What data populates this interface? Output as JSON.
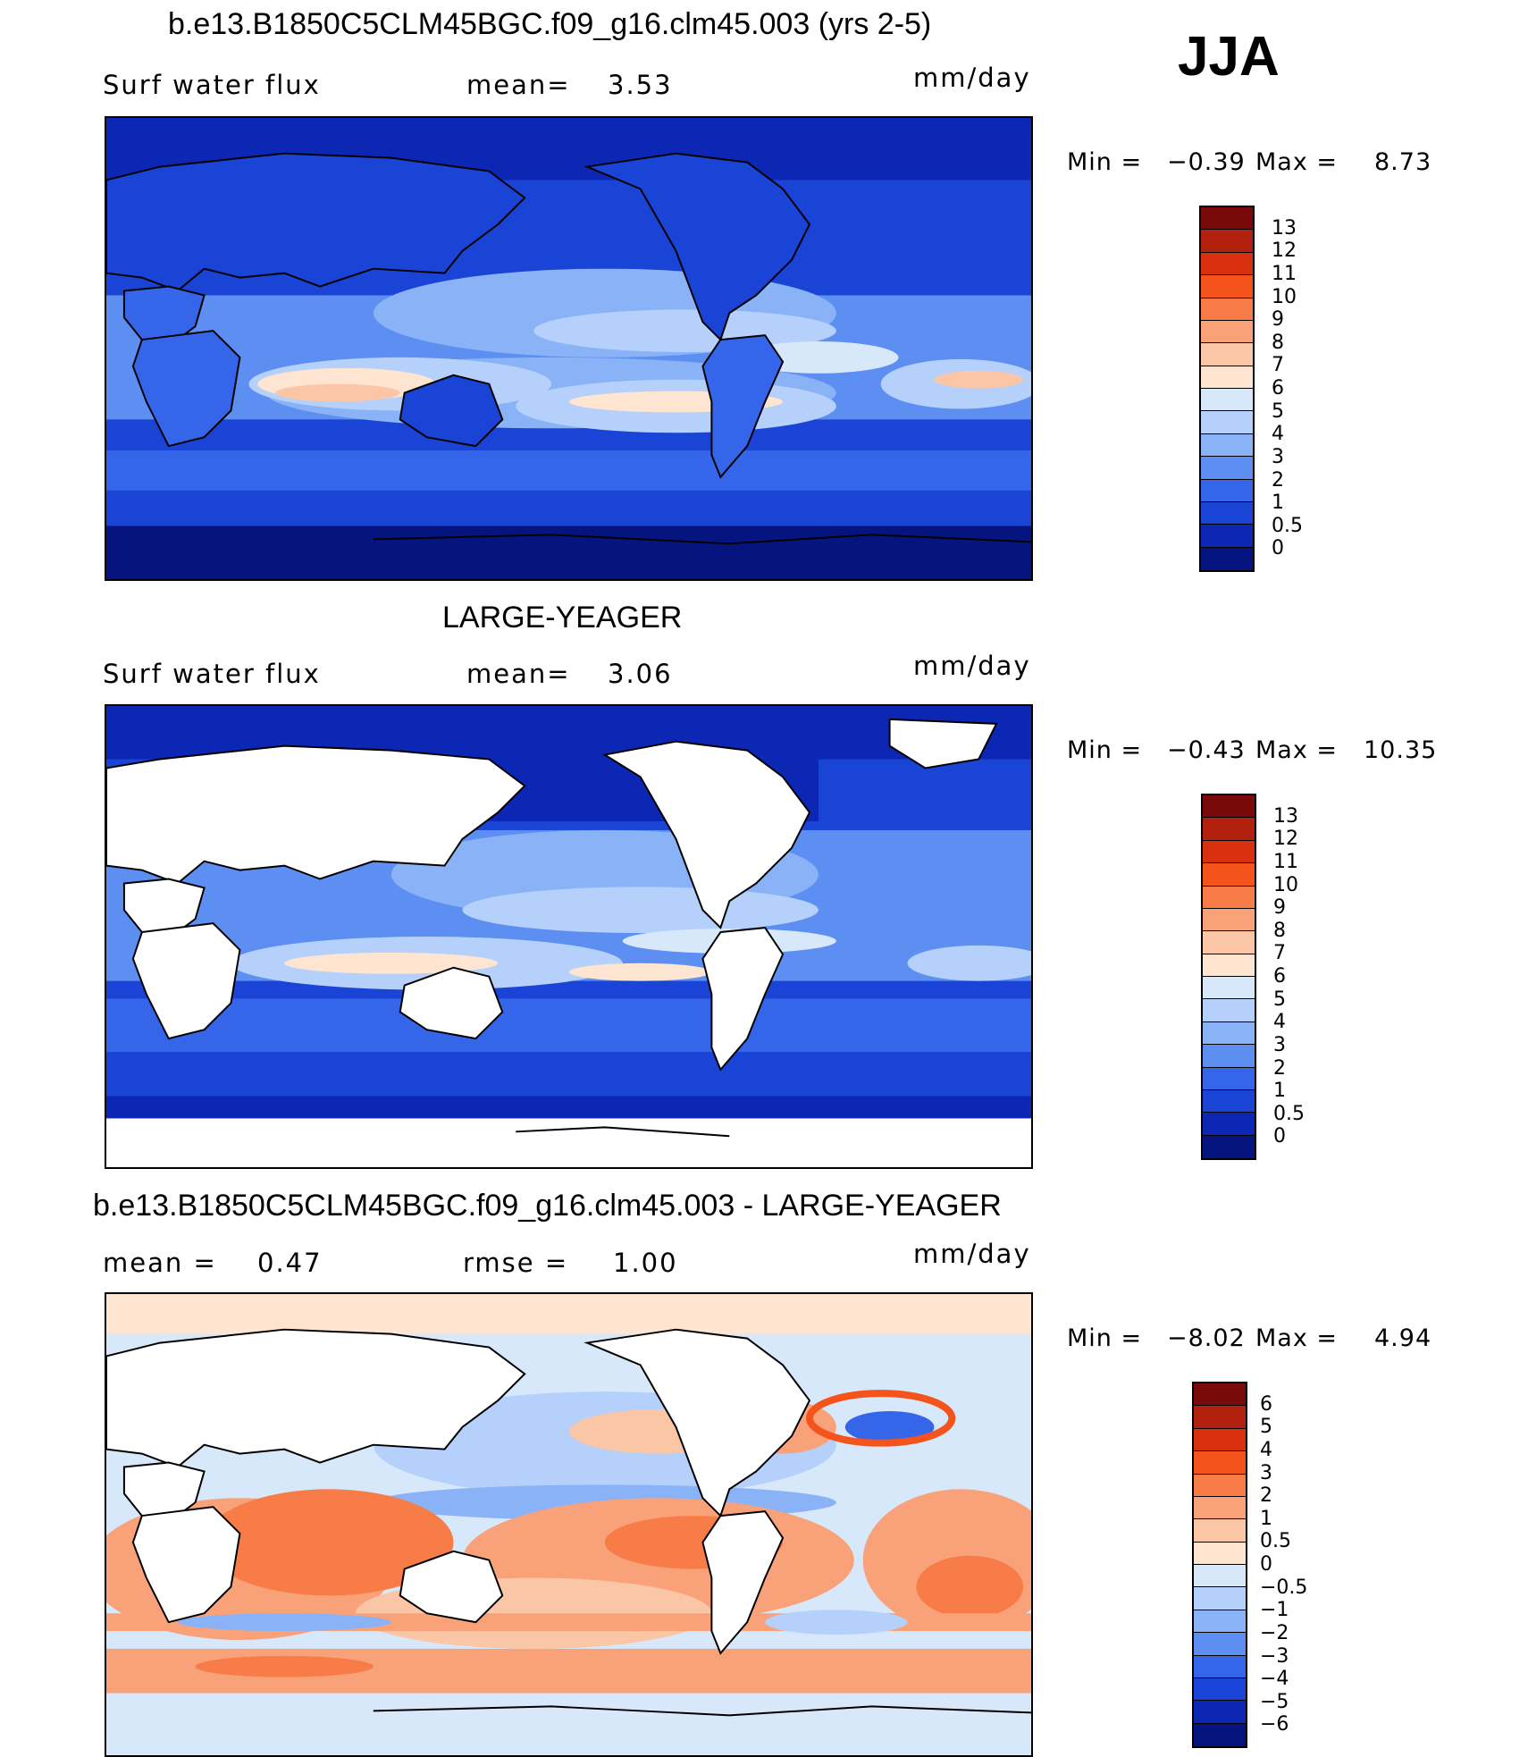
{
  "season": "JJA",
  "panels": [
    {
      "id": "model",
      "title": "b.e13.B1850C5CLM45BGC.f09_g16.clm45.003 (yrs 2-5)",
      "variable": "Surf  water  flux",
      "stat1_label": "mean=",
      "stat1_value": "3.53",
      "units": "mm/day",
      "min_label": "Min  =",
      "min_value": "−0.39",
      "max_label": "Max  =",
      "max_value": "8.73",
      "colorbar_levels": [
        "13",
        "12",
        "11",
        "10",
        "9",
        "8",
        "7",
        "6",
        "5",
        "4",
        "3",
        "2",
        "1",
        "0.5",
        "0"
      ],
      "colorbar_colors": [
        "#7a0a0a",
        "#b1210d",
        "#d9300f",
        "#f4541c",
        "#f77c48",
        "#f9a27a",
        "#fbc6a6",
        "#fde5d2",
        "#d7e8fb",
        "#b5d0fa",
        "#8ab2f6",
        "#5d8ef2",
        "#3566ea",
        "#1a44d6",
        "#0b27b3",
        "#061480"
      ]
    },
    {
      "id": "obs",
      "title": "LARGE-YEAGER",
      "variable": "Surf  water  flux",
      "stat1_label": "mean=",
      "stat1_value": "3.06",
      "units": "mm/day",
      "min_label": "Min  =",
      "min_value": "−0.43",
      "max_label": "Max  =",
      "max_value": "10.35",
      "colorbar_levels": [
        "13",
        "12",
        "11",
        "10",
        "9",
        "8",
        "7",
        "6",
        "5",
        "4",
        "3",
        "2",
        "1",
        "0.5",
        "0"
      ],
      "colorbar_colors": [
        "#7a0a0a",
        "#b1210d",
        "#d9300f",
        "#f4541c",
        "#f77c48",
        "#f9a27a",
        "#fbc6a6",
        "#fde5d2",
        "#d7e8fb",
        "#b5d0fa",
        "#8ab2f6",
        "#5d8ef2",
        "#3566ea",
        "#1a44d6",
        "#0b27b3",
        "#061480"
      ]
    },
    {
      "id": "diff",
      "title": "b.e13.B1850C5CLM45BGC.f09_g16.clm45.003 - LARGE-YEAGER",
      "stat1_label": "mean  =",
      "stat1_value": "0.47",
      "stat2_label": "rmse  =",
      "stat2_value": "1.00",
      "units": "mm/day",
      "min_label": "Min  =",
      "min_value": "−8.02",
      "max_label": "Max  =",
      "max_value": "4.94",
      "colorbar_levels": [
        "6",
        "5",
        "4",
        "3",
        "2",
        "1",
        "0.5",
        "0",
        "−0.5",
        "−1",
        "−2",
        "−3",
        "−4",
        "−5",
        "−6"
      ],
      "colorbar_colors": [
        "#7a0a0a",
        "#b1210d",
        "#d9300f",
        "#f4541c",
        "#f77c48",
        "#f9a27a",
        "#fbc6a6",
        "#fde5d2",
        "#d7e8fb",
        "#b5d0fa",
        "#8ab2f6",
        "#5d8ef2",
        "#3566ea",
        "#1a44d6",
        "#0b27b3",
        "#061480"
      ]
    }
  ]
}
